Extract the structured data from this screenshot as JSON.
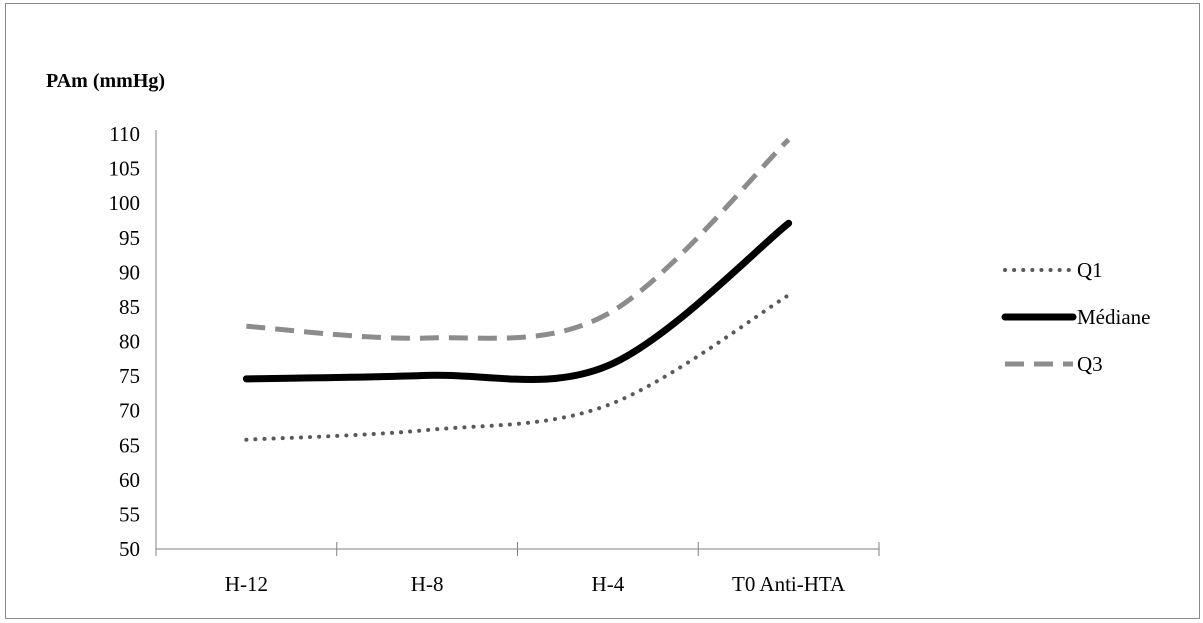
{
  "chart_data": {
    "type": "line",
    "title": "",
    "ylabel": "PAm (mmHg)",
    "xlabel": "",
    "categories": [
      "H-12",
      "H-8",
      "H-4",
      "T0 Anti-HTA"
    ],
    "yticks": [
      50,
      55,
      60,
      65,
      70,
      75,
      80,
      85,
      90,
      95,
      100,
      105,
      110
    ],
    "ylim": [
      50,
      110
    ],
    "grid": false,
    "legend_position": "right",
    "smooth": true,
    "series": [
      {
        "name": "Q1",
        "values": [
          65.8,
          67.2,
          70.8,
          86.7
        ],
        "color": "#595959",
        "style": "dotted"
      },
      {
        "name": "Médiane",
        "values": [
          74.6,
          75.1,
          76.5,
          97.1
        ],
        "color": "#000000",
        "style": "solid"
      },
      {
        "name": "Q3",
        "values": [
          82.2,
          80.5,
          84.0,
          109.2
        ],
        "color": "#8c8c8c",
        "style": "dashed"
      }
    ]
  }
}
